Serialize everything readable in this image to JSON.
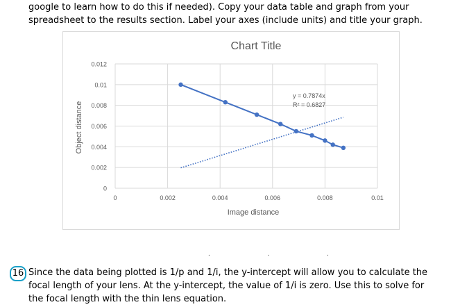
{
  "document": {
    "intro_line1": "google to learn how to do this if needed).  Copy your data table and graph from your",
    "intro_line2": "spreadsheet to the results section. Label your axes (include units) and title your graph.",
    "question_number": "16",
    "question_line1": "Since the data being plotted is 1/p and 1/i, the y-intercept will allow you to calculate the",
    "question_line2": "focal length of your lens. At the y-intercept, the value of 1/i is zero. Use this to solve for",
    "question_line3": "the focal length with the thin lens equation."
  },
  "chart_data": {
    "type": "scatter",
    "title": "Chart Title",
    "xlabel": "Image distance",
    "ylabel": "Object distance",
    "xlim": [
      0,
      0.01
    ],
    "ylim": [
      0,
      0.012
    ],
    "x_ticks": [
      "0",
      "0.002",
      "0.004",
      "0.006",
      "0.008",
      "0.01"
    ],
    "y_ticks": [
      "0",
      "0.002",
      "0.004",
      "0.006",
      "0.008",
      "0.01",
      "0.012"
    ],
    "grid": true,
    "series": [
      {
        "color": "#4472c4",
        "points": [
          {
            "x": 0.0025,
            "y": 0.01
          },
          {
            "x": 0.0042,
            "y": 0.0083
          },
          {
            "x": 0.0054,
            "y": 0.0071
          },
          {
            "x": 0.0063,
            "y": 0.0062
          },
          {
            "x": 0.0069,
            "y": 0.0055
          },
          {
            "x": 0.0075,
            "y": 0.0051
          },
          {
            "x": 0.008,
            "y": 0.0046
          },
          {
            "x": 0.0083,
            "y": 0.0042
          },
          {
            "x": 0.0087,
            "y": 0.0039
          }
        ]
      }
    ],
    "trendline": {
      "equation": "y = 0.7874x",
      "r_squared": "R² = 0.6827",
      "slope": 0.7874,
      "x_range": [
        0.0025,
        0.0087
      ],
      "color": "#4472c4"
    }
  }
}
